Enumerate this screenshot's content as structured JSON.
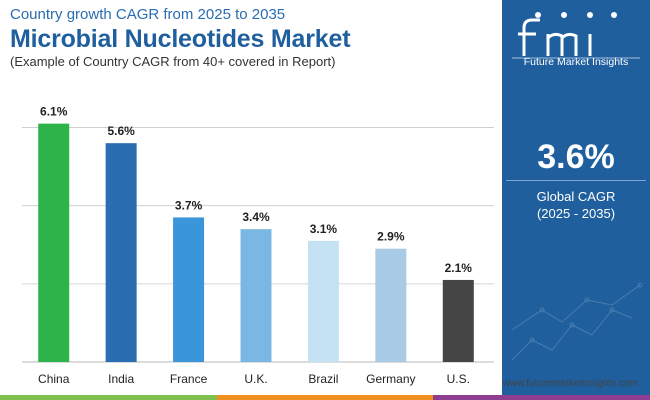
{
  "header": {
    "subtitle": "Country growth CAGR from 2025 to 2035",
    "title": "Microbial Nucleotides Market",
    "note": "(Example of Country CAGR from 40+ covered in Report)"
  },
  "chart_data": {
    "type": "bar",
    "categories": [
      "China",
      "India",
      "France",
      "U.K.",
      "Brazil",
      "Germany",
      "U.S."
    ],
    "values": [
      6.1,
      5.6,
      3.7,
      3.4,
      3.1,
      2.9,
      2.1
    ],
    "value_labels": [
      "6.1%",
      "5.6%",
      "3.7%",
      "3.4%",
      "3.1%",
      "2.9%",
      "2.1%"
    ],
    "colors": [
      "#2db34a",
      "#2a6db0",
      "#3b95d9",
      "#7ab8e3",
      "#c5e1f4",
      "#a9cbe5",
      "#454545"
    ],
    "ylim": [
      0,
      6.5
    ],
    "grid": true,
    "legend": "none"
  },
  "side_panel": {
    "logo_text": "Future Market Insights",
    "kpi_value": "3.6%",
    "kpi_label": "Global CAGR",
    "kpi_period": "(2025 - 2035)"
  },
  "footer": {
    "website": "www.futuremarketinsights.com",
    "bar_colors": [
      "#7fc04f",
      "#f0901e",
      "#8e3e91"
    ]
  },
  "theme": {
    "panel_bg": "#1f5f9e",
    "title_color": "#1f5f9e",
    "grid_color": "#c8c8c8"
  }
}
